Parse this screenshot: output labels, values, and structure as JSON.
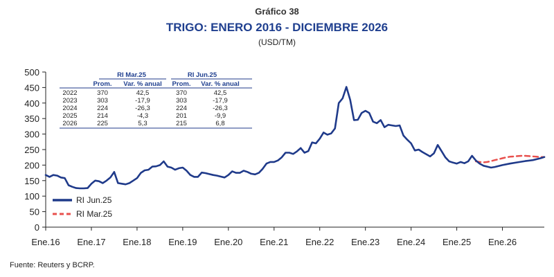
{
  "header": {
    "label": "Gráfico 38",
    "title": "TRIGO: ENERO 2016 - DICIEMBRE 2026",
    "unit": "(USD/TM)"
  },
  "source": "Fuente: Reuters y BCRP.",
  "colors": {
    "navy": "#1f3a8a",
    "red": "#e8504d",
    "title": "#1f3f8f"
  },
  "legend": {
    "actual": "RI Jun.25",
    "previous": "RI Mar.25"
  },
  "table": {
    "groups": [
      "RI Mar.25",
      "RI Jun.25"
    ],
    "columns": [
      "Prom.",
      "Var. % anual",
      "Prom.",
      "Var. % anual"
    ],
    "rows": [
      {
        "year": "2022",
        "cells": [
          "370",
          "42,5",
          "370",
          "42,5"
        ]
      },
      {
        "year": "2023",
        "cells": [
          "303",
          "-17,9",
          "303",
          "-17,9"
        ]
      },
      {
        "year": "2024",
        "cells": [
          "224",
          "-26,3",
          "224",
          "-26,3"
        ]
      },
      {
        "year": "2025",
        "cells": [
          "214",
          "-4,3",
          "201",
          "-9,9"
        ]
      },
      {
        "year": "2026",
        "cells": [
          "225",
          "5,3",
          "215",
          "6,8"
        ]
      }
    ]
  },
  "chart_data": {
    "type": "line",
    "title": "TRIGO: ENERO 2016 - DICIEMBRE 2026",
    "ylabel": "(USD/TM)",
    "ylim": [
      0,
      500
    ],
    "yticks": [
      0,
      50,
      100,
      150,
      200,
      250,
      300,
      350,
      400,
      450,
      500
    ],
    "xlim": [
      0,
      131
    ],
    "xticks": [
      {
        "label": "Ene.16",
        "x": 0
      },
      {
        "label": "Ene.17",
        "x": 12
      },
      {
        "label": "Ene.18",
        "x": 24
      },
      {
        "label": "Ene.19",
        "x": 36
      },
      {
        "label": "Ene.20",
        "x": 48
      },
      {
        "label": "Ene.21",
        "x": 60
      },
      {
        "label": "Ene.22",
        "x": 72
      },
      {
        "label": "Ene.23",
        "x": 84
      },
      {
        "label": "Ene.24",
        "x": 96
      },
      {
        "label": "Ene.25",
        "x": 108
      },
      {
        "label": "Ene.26",
        "x": 120
      }
    ],
    "grid": false,
    "legend_position": "bottom-left",
    "series": [
      {
        "name": "RI Jun.25",
        "style": "solid",
        "points": [
          [
            0,
            168
          ],
          [
            1,
            162
          ],
          [
            2,
            168
          ],
          [
            3,
            166
          ],
          [
            4,
            160
          ],
          [
            5,
            158
          ],
          [
            6,
            135
          ],
          [
            7,
            130
          ],
          [
            8,
            126
          ],
          [
            9,
            125
          ],
          [
            10,
            125
          ],
          [
            11,
            126
          ],
          [
            12,
            140
          ],
          [
            13,
            150
          ],
          [
            14,
            148
          ],
          [
            15,
            142
          ],
          [
            16,
            150
          ],
          [
            17,
            160
          ],
          [
            18,
            178
          ],
          [
            19,
            142
          ],
          [
            20,
            140
          ],
          [
            21,
            138
          ],
          [
            22,
            142
          ],
          [
            23,
            150
          ],
          [
            24,
            158
          ],
          [
            25,
            175
          ],
          [
            26,
            183
          ],
          [
            27,
            185
          ],
          [
            28,
            195
          ],
          [
            29,
            196
          ],
          [
            30,
            200
          ],
          [
            31,
            212
          ],
          [
            32,
            195
          ],
          [
            33,
            192
          ],
          [
            34,
            185
          ],
          [
            35,
            190
          ],
          [
            36,
            192
          ],
          [
            37,
            182
          ],
          [
            38,
            168
          ],
          [
            39,
            162
          ],
          [
            40,
            162
          ],
          [
            41,
            176
          ],
          [
            42,
            174
          ],
          [
            43,
            171
          ],
          [
            44,
            168
          ],
          [
            45,
            166
          ],
          [
            46,
            163
          ],
          [
            47,
            160
          ],
          [
            48,
            168
          ],
          [
            49,
            180
          ],
          [
            50,
            175
          ],
          [
            51,
            175
          ],
          [
            52,
            182
          ],
          [
            53,
            178
          ],
          [
            54,
            172
          ],
          [
            55,
            170
          ],
          [
            56,
            175
          ],
          [
            57,
            188
          ],
          [
            58,
            205
          ],
          [
            59,
            210
          ],
          [
            60,
            210
          ],
          [
            61,
            215
          ],
          [
            62,
            225
          ],
          [
            63,
            240
          ],
          [
            64,
            240
          ],
          [
            65,
            236
          ],
          [
            66,
            244
          ],
          [
            67,
            255
          ],
          [
            68,
            240
          ],
          [
            69,
            245
          ],
          [
            70,
            273
          ],
          [
            71,
            270
          ],
          [
            72,
            285
          ],
          [
            73,
            305
          ],
          [
            74,
            298
          ],
          [
            75,
            302
          ],
          [
            76,
            318
          ],
          [
            77,
            400
          ],
          [
            78,
            415
          ],
          [
            79,
            452
          ],
          [
            80,
            410
          ],
          [
            81,
            345
          ],
          [
            82,
            346
          ],
          [
            83,
            368
          ],
          [
            84,
            375
          ],
          [
            85,
            368
          ],
          [
            86,
            340
          ],
          [
            87,
            335
          ],
          [
            88,
            345
          ],
          [
            89,
            322
          ],
          [
            90,
            330
          ],
          [
            91,
            328
          ],
          [
            92,
            326
          ],
          [
            93,
            328
          ],
          [
            94,
            295
          ],
          [
            95,
            282
          ],
          [
            96,
            270
          ],
          [
            97,
            247
          ],
          [
            98,
            250
          ],
          [
            99,
            242
          ],
          [
            100,
            235
          ],
          [
            101,
            228
          ],
          [
            102,
            238
          ],
          [
            103,
            265
          ],
          [
            104,
            245
          ],
          [
            105,
            225
          ],
          [
            106,
            212
          ],
          [
            107,
            208
          ],
          [
            108,
            205
          ],
          [
            109,
            210
          ],
          [
            110,
            206
          ],
          [
            111,
            212
          ],
          [
            112,
            230
          ],
          [
            113,
            215
          ],
          [
            114,
            205
          ],
          [
            115,
            198
          ],
          [
            116,
            195
          ],
          [
            117,
            192
          ],
          [
            118,
            194
          ],
          [
            120,
            200
          ],
          [
            122,
            205
          ],
          [
            124,
            209
          ],
          [
            126,
            213
          ],
          [
            128,
            216
          ],
          [
            130,
            222
          ],
          [
            131,
            226
          ]
        ]
      },
      {
        "name": "RI Mar.25",
        "style": "dashed",
        "points": [
          [
            113,
            212
          ],
          [
            114,
            210
          ],
          [
            115,
            209
          ],
          [
            116,
            210
          ],
          [
            117,
            213
          ],
          [
            118,
            216
          ],
          [
            119,
            219
          ],
          [
            120,
            222
          ],
          [
            121,
            225
          ],
          [
            122,
            227
          ],
          [
            123,
            228
          ],
          [
            124,
            229
          ],
          [
            125,
            230
          ],
          [
            126,
            230
          ],
          [
            127,
            229
          ],
          [
            128,
            228
          ],
          [
            129,
            227
          ],
          [
            130,
            226
          ],
          [
            131,
            226
          ]
        ]
      }
    ]
  }
}
